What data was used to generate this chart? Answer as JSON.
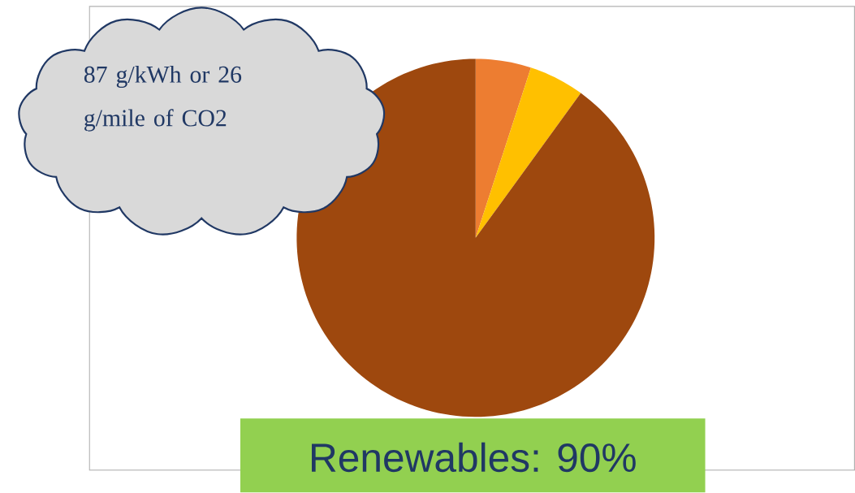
{
  "chart_data": {
    "type": "pie",
    "categories": [
      null,
      null,
      null
    ],
    "values": [
      5,
      5,
      90
    ],
    "colors": [
      "#ed7d31",
      "#ffc000",
      "#9e480e"
    ],
    "annotations": [
      "87 g/kWh or 26 g/mile of CO2",
      "Renewables: 90%"
    ]
  }
}
